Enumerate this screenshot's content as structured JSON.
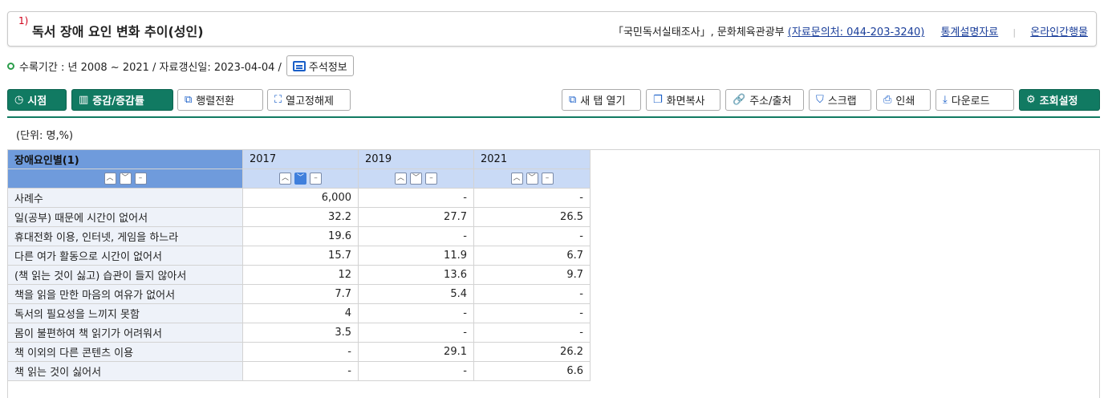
{
  "title": {
    "sup": "1)",
    "text": "독서 장애 요인 변화 추이(성인)"
  },
  "source": {
    "survey": "「국민독서실태조사」, 문화체육관광부",
    "contact": "(자료문의처: 044-203-3240)",
    "stat_desc_link": "통계설명자료",
    "online_pub_link": "온라인간행물"
  },
  "period": {
    "text": "수록기간 : 년 2008 ~ 2021 / 자료갱신일: 2023-04-04 /",
    "note_button": "주석정보"
  },
  "toolbar": {
    "left": [
      {
        "name": "timepoint-button",
        "icon": "clock-icon",
        "glyph": "◷",
        "label": "시점",
        "style": "green"
      },
      {
        "name": "change-rate-button",
        "icon": "chart-icon",
        "glyph": "▥",
        "label": "증감/증감률",
        "style": "green"
      },
      {
        "name": "pivot-button",
        "icon": "pivot-icon",
        "glyph": "⧉",
        "label": "행렬전환",
        "style": "white"
      },
      {
        "name": "unfix-column-button",
        "icon": "unfix-icon",
        "glyph": "⛶",
        "label": "열고정해제",
        "style": "white"
      }
    ],
    "right": [
      {
        "name": "new-tab-button",
        "icon": "external-icon",
        "glyph": "⧉",
        "label": "새 탭 열기",
        "style": "white"
      },
      {
        "name": "copy-screen-button",
        "icon": "copy-icon",
        "glyph": "❐",
        "label": "화면복사",
        "style": "white"
      },
      {
        "name": "address-source-button",
        "icon": "link-icon",
        "glyph": "🔗",
        "label": "주소/출처",
        "style": "white"
      },
      {
        "name": "scrap-button",
        "icon": "bookmark-icon",
        "glyph": "⛉",
        "label": "스크랩",
        "style": "white"
      },
      {
        "name": "print-button",
        "icon": "print-icon",
        "glyph": "⎙",
        "label": "인쇄",
        "style": "white"
      },
      {
        "name": "download-button",
        "icon": "download-icon",
        "glyph": "⤓",
        "label": "다운로드",
        "style": "white"
      },
      {
        "name": "query-settings-button",
        "icon": "gear-icon",
        "glyph": "⚙",
        "label": "조회설정",
        "style": "green"
      }
    ]
  },
  "unit": "(단위: 명,%)",
  "table": {
    "stub_header": "장애요인별(1)",
    "years": [
      "2017",
      "2019",
      "2021"
    ],
    "rows": [
      {
        "label": "사례수",
        "values": [
          "6,000",
          "-",
          "-"
        ]
      },
      {
        "label": "일(공부) 때문에 시간이 없어서",
        "values": [
          "32.2",
          "27.7",
          "26.5"
        ]
      },
      {
        "label": "휴대전화 이용, 인터넷, 게임을 하느라",
        "values": [
          "19.6",
          "-",
          "-"
        ]
      },
      {
        "label": "다른 여가 활동으로 시간이 없어서",
        "values": [
          "15.7",
          "11.9",
          "6.7"
        ]
      },
      {
        "label": "(책 읽는 것이 싫고) 습관이 들지 않아서",
        "values": [
          "12",
          "13.6",
          "9.7"
        ]
      },
      {
        "label": "책을 읽을 만한 마음의 여유가 없어서",
        "values": [
          "7.7",
          "5.4",
          "-"
        ]
      },
      {
        "label": "독서의 필요성을 느끼지 못함",
        "values": [
          "4",
          "-",
          "-"
        ]
      },
      {
        "label": "몸이 불편하여 책 읽기가 어려워서",
        "values": [
          "3.5",
          "-",
          "-"
        ]
      },
      {
        "label": "책 이외의 다른 콘텐츠 이용",
        "values": [
          "-",
          "29.1",
          "26.2"
        ]
      },
      {
        "label": "책 읽는 것이 싫어서",
        "values": [
          "-",
          "-",
          "6.6"
        ]
      }
    ]
  }
}
